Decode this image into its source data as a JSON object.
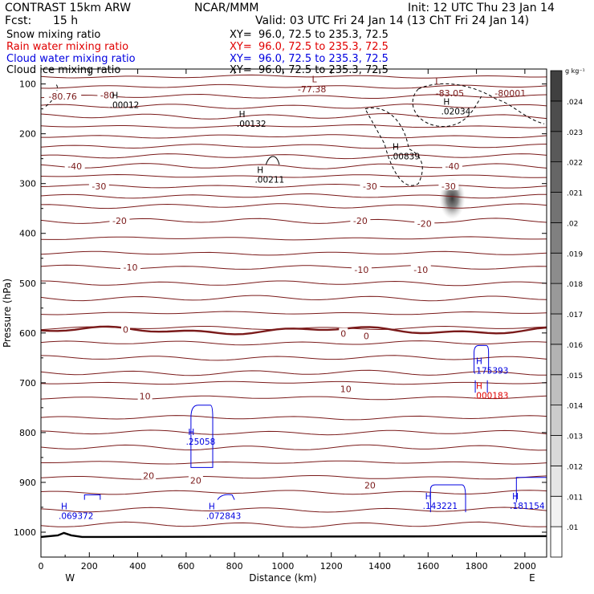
{
  "header": {
    "model": "CONTRAST 15km ARW",
    "org": "NCAR/MMM",
    "init": "Init: 12 UTC Thu 23 Jan 14",
    "fcst_label": "Fcst:",
    "fcst_value": "15 h",
    "valid": "Valid: 03 UTC Fri 24 Jan 14 (13 ChT Fri 24 Jan 14)"
  },
  "fields": [
    {
      "name": "Snow mixing ratio",
      "xy": "XY=  96.0, 72.5 to 235.3, 72.5",
      "color": "#000000"
    },
    {
      "name": "Rain water mixing ratio",
      "xy": "XY=  96.0, 72.5 to 235.3, 72.5",
      "color": "#e00000"
    },
    {
      "name": "Cloud water mixing ratio",
      "xy": "XY=  96.0, 72.5 to 235.3, 72.5",
      "color": "#0000e0"
    },
    {
      "name": "Cloud ice mixing ratio",
      "xy": "XY=  96.0, 72.5 to 235.3, 72.5",
      "color": "#000000"
    }
  ],
  "chart_data": {
    "type": "contour cross-section",
    "xlabel": "Distance (km)",
    "ylabel": "Pressure (hPa)",
    "xlim": [
      0,
      2090
    ],
    "ylim": [
      1050,
      70
    ],
    "x_ticks": [
      0,
      200,
      400,
      600,
      800,
      1000,
      1200,
      1400,
      1600,
      1800,
      2000
    ],
    "x_tick_labels": [
      "0",
      "200",
      "400",
      "600",
      "800",
      "1000",
      "1200",
      "1400",
      "1600",
      "1800",
      "2000"
    ],
    "y_ticks": [
      100,
      200,
      300,
      400,
      500,
      600,
      700,
      800,
      900,
      1000
    ],
    "y_tick_labels": [
      "100",
      "200",
      "300",
      "400",
      "500",
      "600",
      "700",
      "800",
      "900",
      "1000"
    ],
    "end_labels": {
      "left": "W",
      "right": "E"
    },
    "colorbar": {
      "unit": "g kg⁻¹",
      "levels": [
        ".01",
        ".011",
        ".012",
        ".013",
        ".014",
        ".015",
        ".016",
        ".017",
        ".018",
        ".019",
        ".02",
        ".021",
        ".022",
        ".023",
        ".024"
      ],
      "colors": [
        "#ffffff",
        "#f2f2f2",
        "#e5e5e5",
        "#d9d9d9",
        "#cccccc",
        "#bfbfbf",
        "#b3b3b3",
        "#a6a6a6",
        "#999999",
        "#8c8c8c",
        "#808080",
        "#737373",
        "#666666",
        "#595959",
        "#4d4d4d",
        "#404040"
      ]
    },
    "temperature_contour_labels": [
      {
        "text": "-80.76",
        "x": 90,
        "p": 125
      },
      {
        "text": "-80",
        "x": 275,
        "p": 122
      },
      {
        "text": "-40",
        "x": 140,
        "p": 265
      },
      {
        "text": "-40",
        "x": 1700,
        "p": 265
      },
      {
        "text": "-30",
        "x": 240,
        "p": 305
      },
      {
        "text": "-30",
        "x": 1360,
        "p": 305
      },
      {
        "text": "-30",
        "x": 1685,
        "p": 305
      },
      {
        "text": "-20",
        "x": 325,
        "p": 375
      },
      {
        "text": "-20",
        "x": 1320,
        "p": 375
      },
      {
        "text": "-20",
        "x": 1585,
        "p": 380
      },
      {
        "text": "-10",
        "x": 370,
        "p": 468
      },
      {
        "text": "-10",
        "x": 1325,
        "p": 473
      },
      {
        "text": "-10",
        "x": 1570,
        "p": 473
      },
      {
        "text": "0",
        "x": 350,
        "p": 593
      },
      {
        "text": "0",
        "x": 1250,
        "p": 601
      },
      {
        "text": "0",
        "x": 1345,
        "p": 606
      },
      {
        "text": "10",
        "x": 430,
        "p": 727
      },
      {
        "text": "10",
        "x": 1260,
        "p": 712
      },
      {
        "text": "20",
        "x": 445,
        "p": 886
      },
      {
        "text": "20",
        "x": 640,
        "p": 896
      },
      {
        "text": "20",
        "x": 1360,
        "p": 906
      }
    ],
    "temperature_lines_p": [
      85,
      105,
      125,
      145,
      165,
      185,
      205,
      225,
      245,
      265,
      285,
      305,
      325,
      345,
      375,
      410,
      440,
      468,
      500,
      530,
      560,
      590,
      620,
      650,
      680,
      700,
      730,
      770,
      800,
      830,
      860,
      890,
      920,
      955,
      985
    ],
    "freezing_level_p": 595,
    "surface_p": 1008,
    "minimum_labels": [
      {
        "text": "L",
        "x": 1130,
        "p": 90
      },
      {
        "text": "-77.38",
        "x": 1120,
        "p": 110
      },
      {
        "text": "L",
        "x": 1640,
        "p": 95
      },
      {
        "text": "-83.05",
        "x": 1690,
        "p": 118
      },
      {
        "text": "-80001",
        "x": 1940,
        "p": 118
      }
    ],
    "max_labels": [
      {
        "text": ".00012",
        "x": 345,
        "p": 142,
        "color": "#000000"
      },
      {
        "text": ".00132",
        "x": 870,
        "p": 180,
        "color": "#000000"
      },
      {
        "text": ".02034",
        "x": 1715,
        "p": 155,
        "color": "#000000"
      },
      {
        "text": ".00839",
        "x": 1505,
        "p": 245,
        "color": "#000000"
      },
      {
        "text": ".00211",
        "x": 945,
        "p": 292,
        "color": "#000000"
      },
      {
        "text": ".175393",
        "x": 1860,
        "p": 675,
        "color": "#0000e0"
      },
      {
        "text": ".000183",
        "x": 1860,
        "p": 725,
        "color": "#e00000"
      },
      {
        "text": ".25058",
        "x": 660,
        "p": 818,
        "color": "#0000e0"
      },
      {
        "text": ".069372",
        "x": 145,
        "p": 967,
        "color": "#0000e0"
      },
      {
        "text": ".072843",
        "x": 755,
        "p": 967,
        "color": "#0000e0"
      },
      {
        "text": ".143221",
        "x": 1650,
        "p": 947,
        "color": "#0000e0"
      },
      {
        "text": ".181154",
        "x": 2010,
        "p": 947,
        "color": "#0000e0"
      }
    ],
    "shaded_maximum": {
      "x": 1700,
      "p": 330,
      "value": ".02"
    }
  }
}
